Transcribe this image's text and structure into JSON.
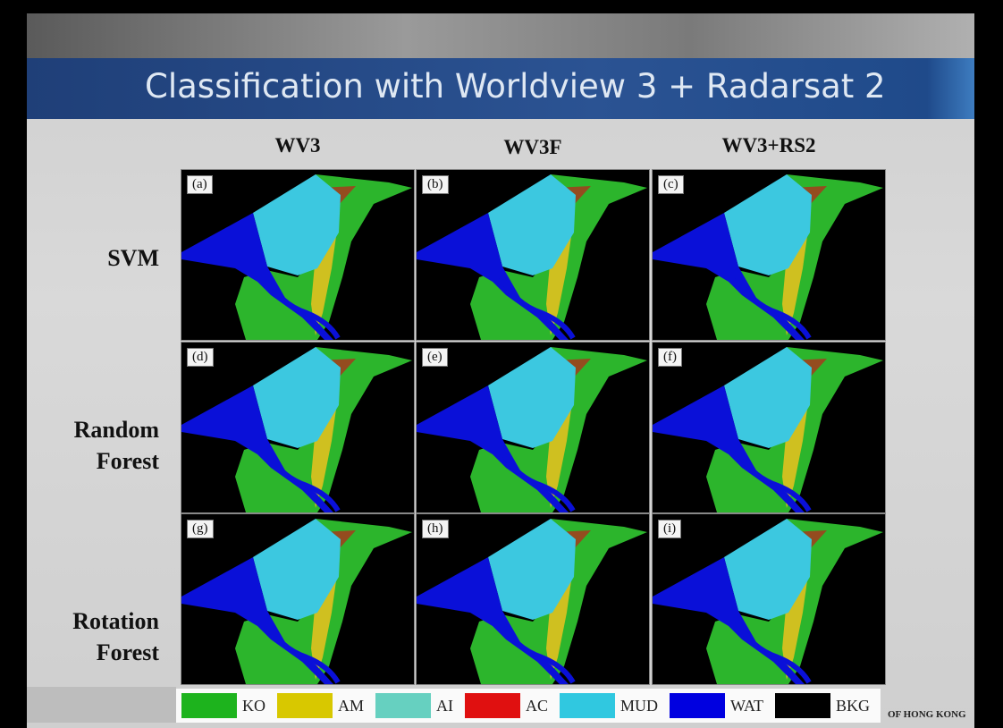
{
  "header": {
    "title": "Classification with Worldview 3 + Radarsat 2"
  },
  "columns": [
    "WV3",
    "WV3F",
    "WV3+RS2"
  ],
  "rows": [
    "SVM",
    "Random Forest",
    "Rotation Forest"
  ],
  "panels": [
    "(a)",
    "(b)",
    "(c)",
    "(d)",
    "(e)",
    "(f)",
    "(g)",
    "(h)",
    "(i)"
  ],
  "legend": [
    "KO",
    "AM",
    "AI",
    "AC",
    "MUD",
    "WAT",
    "BKG"
  ],
  "footer": "OF HONG KONG"
}
